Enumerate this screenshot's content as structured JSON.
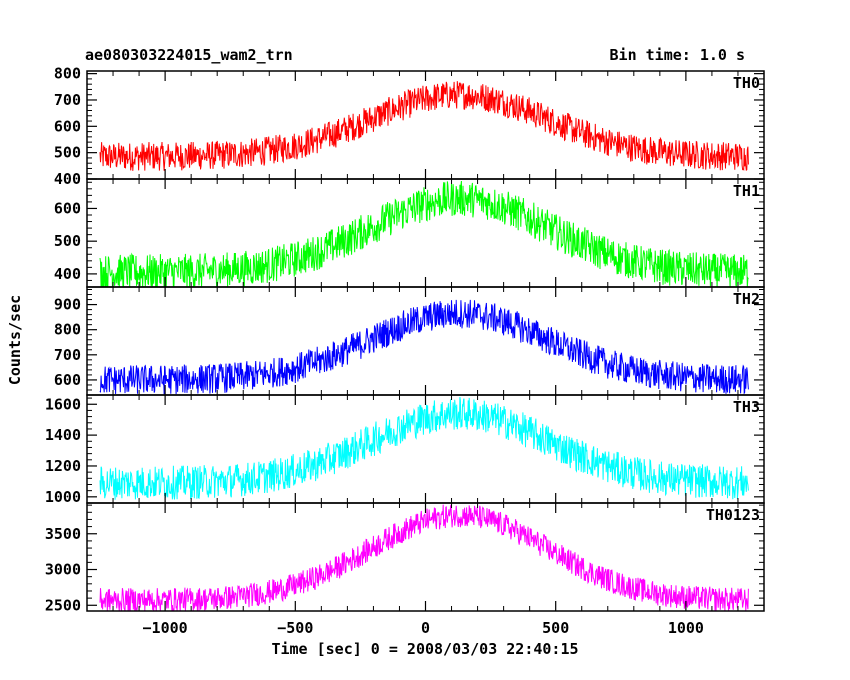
{
  "chart_data": {
    "type": "line",
    "title": "ae080303224015_wam2_trn",
    "subtitle": "Bin time: 1.0 s",
    "xlabel": "Time [sec] 0 = 2008/03/03 22:40:15",
    "ylabel": "Counts/sec",
    "xlim": [
      -1300,
      1300
    ],
    "xticks": [
      -1000,
      -500,
      0,
      500,
      1000
    ],
    "xtick_labels": [
      "−1000",
      "−500",
      "0",
      "500",
      "1000"
    ],
    "x_start": -1250,
    "x_end": 1240,
    "bin_time": 1.0,
    "panels": [
      {
        "name": "TH0",
        "color": "#ff0000",
        "ylim": [
          400,
          810
        ],
        "yticks": [
          400,
          500,
          600,
          700,
          800
        ],
        "baseline": 485,
        "peak": 720,
        "peak_x": 130,
        "noise": 55
      },
      {
        "name": "TH1",
        "color": "#00ff00",
        "ylim": [
          360,
          690
        ],
        "yticks": [
          400,
          500,
          600
        ],
        "baseline": 405,
        "peak": 630,
        "peak_x": 130,
        "noise": 55
      },
      {
        "name": "TH2",
        "color": "#0000ff",
        "ylim": [
          540,
          970
        ],
        "yticks": [
          600,
          700,
          800,
          900
        ],
        "baseline": 600,
        "peak": 865,
        "peak_x": 130,
        "noise": 60
      },
      {
        "name": "TH3",
        "color": "#00ffff",
        "ylim": [
          960,
          1660
        ],
        "yticks": [
          1000,
          1200,
          1400,
          1600
        ],
        "baseline": 1090,
        "peak": 1540,
        "peak_x": 130,
        "noise": 110
      },
      {
        "name": "TH0123",
        "color": "#ff00ff",
        "ylim": [
          2420,
          3930
        ],
        "yticks": [
          2500,
          3000,
          3500
        ],
        "baseline": 2570,
        "peak": 3760,
        "peak_x": 130,
        "noise": 170
      }
    ]
  }
}
